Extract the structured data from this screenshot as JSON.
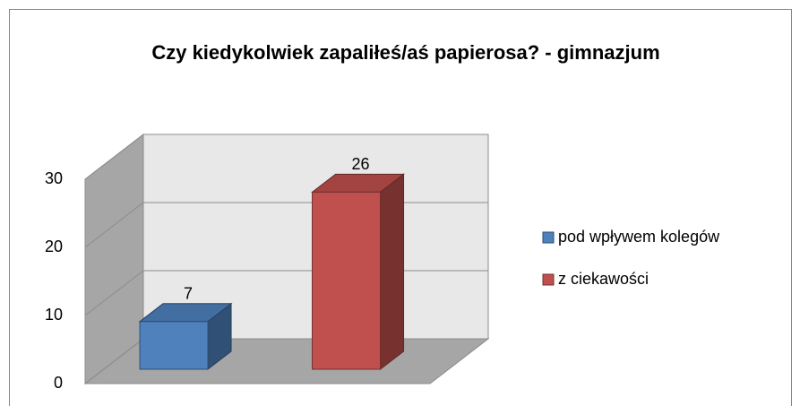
{
  "chart_data": {
    "type": "bar3d",
    "title": "Czy kiedykolwiek zapaliłeś/aś papierosa? - gimnazjum",
    "series": [
      {
        "name": "pod wpływem kolegów",
        "color": "#4f81bd",
        "values": [
          7
        ]
      },
      {
        "name": "z ciekawości",
        "color": "#c0504d",
        "values": [
          26
        ]
      }
    ],
    "ylim": [
      0,
      30
    ],
    "yticks": [
      0,
      10,
      20,
      30
    ],
    "grid": true,
    "legend": "right"
  }
}
